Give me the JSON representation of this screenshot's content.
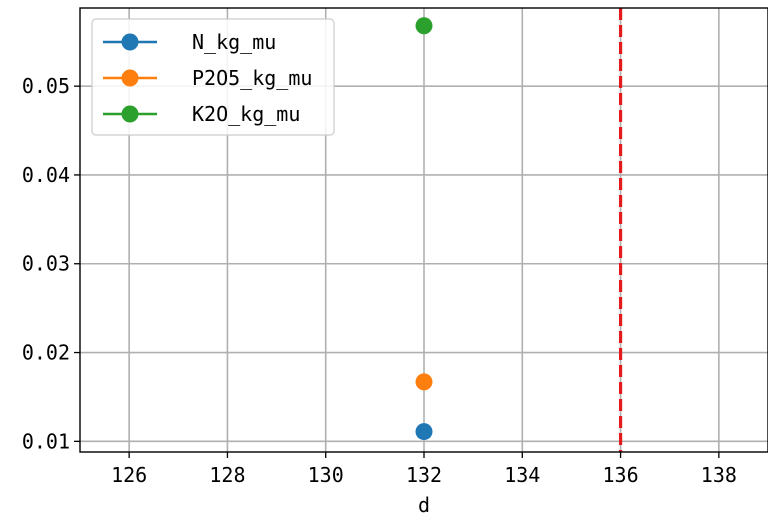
{
  "chart_data": {
    "type": "scatter",
    "title": "",
    "xlabel": "d",
    "ylabel": "",
    "xlim": [
      125,
      139
    ],
    "ylim": [
      0.0088,
      0.0588
    ],
    "grid": true,
    "xticks": [
      126,
      128,
      130,
      132,
      134,
      136,
      138
    ],
    "xtick_labels": [
      "126",
      "128",
      "130",
      "132",
      "134",
      "136",
      "138"
    ],
    "yticks": [
      0.01,
      0.02,
      0.03,
      0.04,
      0.05
    ],
    "ytick_labels": [
      "0.01",
      "0.02",
      "0.03",
      "0.04",
      "0.05"
    ],
    "legend_position": "top-left",
    "series": [
      {
        "name": "N_kg_mu",
        "color": "#1f77b4",
        "points": [
          {
            "x": 132,
            "y": 0.0111
          }
        ]
      },
      {
        "name": "P2O5_kg_mu",
        "color": "#ff7f0e",
        "points": [
          {
            "x": 132,
            "y": 0.0167
          }
        ]
      },
      {
        "name": "K2O_kg_mu",
        "color": "#2ca02c",
        "points": [
          {
            "x": 132,
            "y": 0.0568
          }
        ]
      }
    ],
    "vlines": [
      {
        "x": 136,
        "color": "#e41a1c",
        "style": "dashed"
      }
    ]
  }
}
